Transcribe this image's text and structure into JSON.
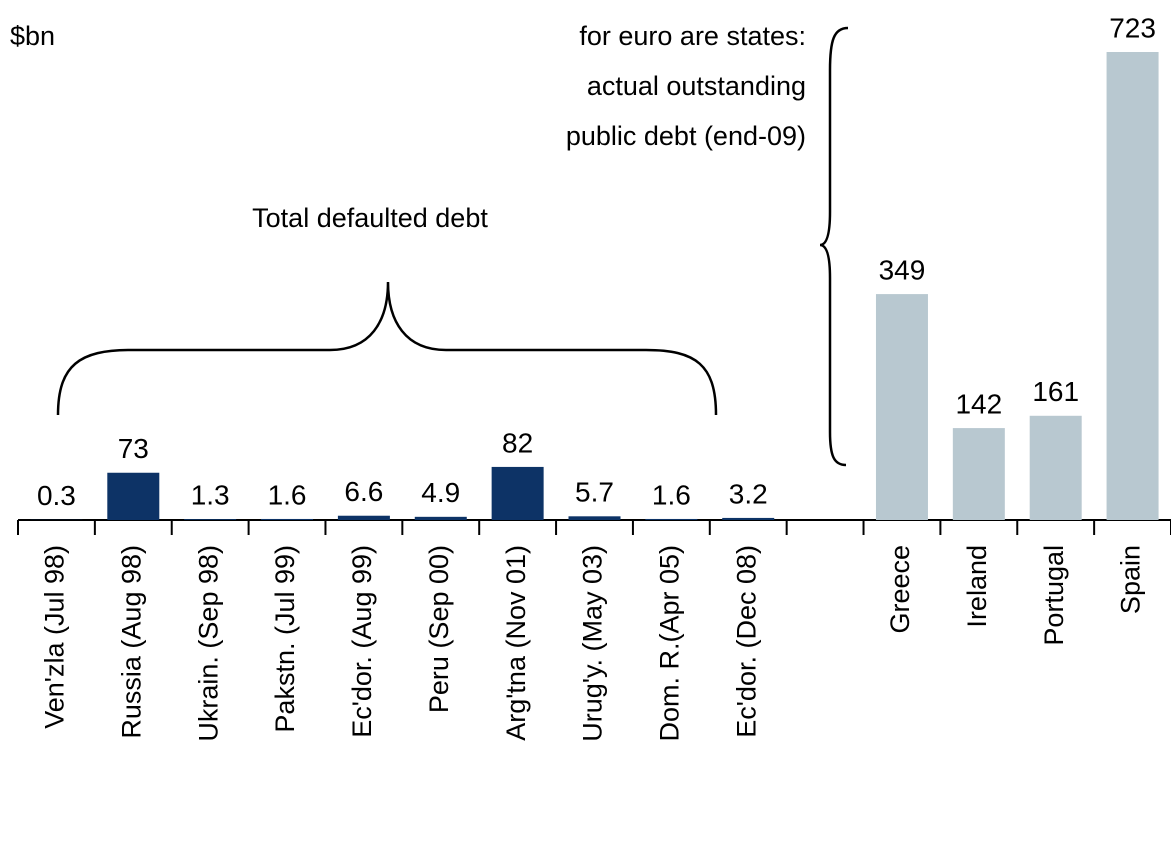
{
  "chart_data": {
    "type": "bar",
    "unit_label": "$bn",
    "annotations": [
      "for euro are states:",
      "actual outstanding",
      "public debt (end-09)",
      "Total defaulted debt"
    ],
    "categories": [
      "Ven'zla (Jul 98)",
      "Russia (Aug 98)",
      "Ukrain. (Sep 98)",
      "Pakstn. (Jul 99)",
      "Ec'dor. (Aug 99)",
      "Peru (Sep 00)",
      "Arg'tna (Nov 01)",
      "Urug'y. (May 03)",
      "Dom. R.(Apr 05)",
      "Ec'dor. (Dec 08)",
      null,
      "Greece",
      "Ireland",
      "Portugal",
      "Spain"
    ],
    "values": [
      0.3,
      73,
      1.3,
      1.6,
      6.6,
      4.9,
      82,
      5.7,
      1.6,
      3.2,
      null,
      349,
      142,
      161,
      723
    ],
    "colors": [
      "#0d3366",
      "#0d3366",
      "#0d3366",
      "#0d3366",
      "#0d3366",
      "#0d3366",
      "#0d3366",
      "#0d3366",
      "#0d3366",
      "#0d3366",
      null,
      "#b8c8d0",
      "#b8c8d0",
      "#b8c8d0",
      "#b8c8d0"
    ],
    "ylim": [
      0,
      723
    ]
  }
}
